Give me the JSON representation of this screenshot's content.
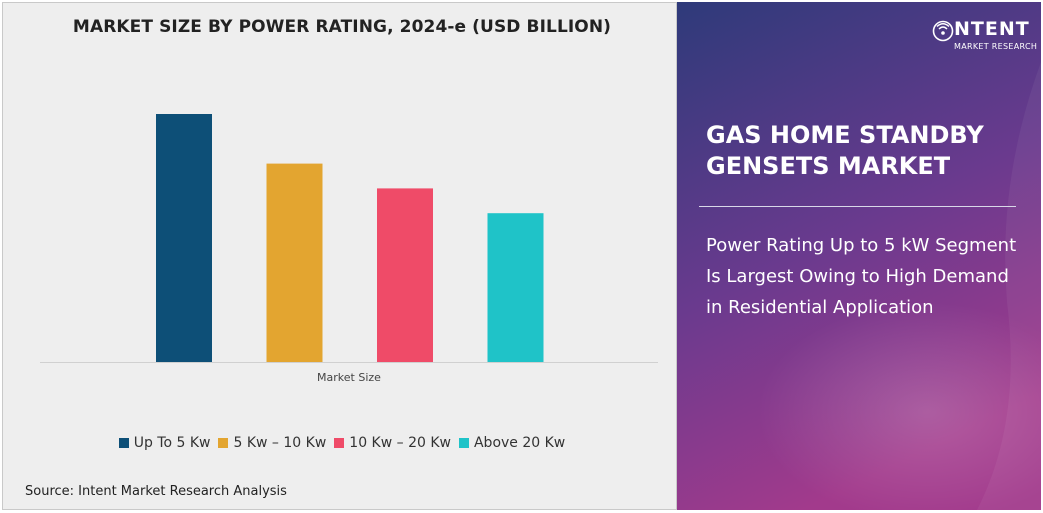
{
  "chart_data": {
    "type": "bar",
    "title": "MARKET SIZE BY POWER RATING, 2024-e (USD BILLION)",
    "xlabel": "Market Size",
    "ylabel": "",
    "categories": [
      "Market Size"
    ],
    "series": [
      {
        "name": "Up To 5 Kw",
        "values": [
          1.0
        ],
        "color": "#0d4f77"
      },
      {
        "name": "5 Kw – 10 Kw",
        "values": [
          0.8
        ],
        "color": "#e3a530"
      },
      {
        "name": "10 Kw – 20 Kw",
        "values": [
          0.7
        ],
        "color": "#ef4b68"
      },
      {
        "name": "Above 20 Kw",
        "values": [
          0.6
        ],
        "color": "#1fc3c8"
      }
    ],
    "ylim": [
      0,
      1.0
    ],
    "grid": false,
    "legend_position": "bottom"
  },
  "source": "Source: Intent Market Research Analysis",
  "right_panel": {
    "market_title": "GAS HOME STANDBY GENSETS MARKET",
    "insight": "Power Rating Up to 5 kW Segment Is Largest Owing to High Demand in Residential Application",
    "logo": {
      "word": "NTENT",
      "tagline": "MARKET RESEARCH",
      "icon": "wifi-signal-icon"
    },
    "gradient": [
      "#2e3a7a",
      "#6a3a8e",
      "#a23a8c"
    ]
  }
}
